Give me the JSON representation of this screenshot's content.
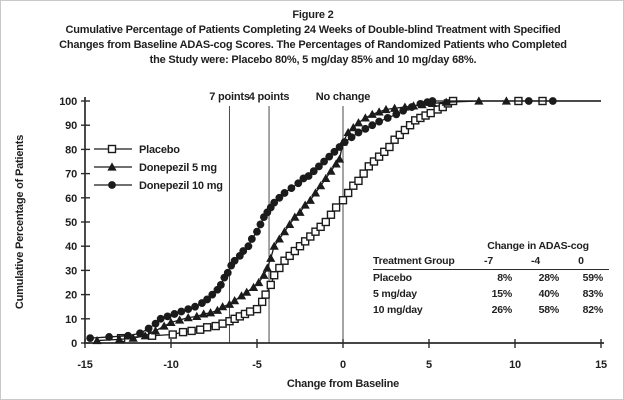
{
  "figure": {
    "heading": "Figure 2",
    "caption_lines": [
      "Cumulative Percentage of Patients Completing 24 Weeks of Double-blind Treatment with Specified",
      "Changes from Baseline ADAS-cog Scores. The Percentages of Randomized Patients who Completed",
      "the Study were: Placebo 80%, 5 mg/day 85% and 10 mg/day 68%."
    ]
  },
  "chart_data": {
    "type": "line",
    "title": "",
    "xlabel": "Change from Baseline",
    "ylabel": "Cumulative Percentage of Patients",
    "xlim": [
      -15,
      15
    ],
    "ylim": [
      0,
      100
    ],
    "xticks": [
      -15,
      -10,
      -5,
      0,
      5,
      10,
      15
    ],
    "yticks": [
      0,
      10,
      20,
      30,
      40,
      50,
      60,
      70,
      80,
      90,
      100
    ],
    "grid": false,
    "legend_position": "upper-left-inside",
    "reference_lines": [
      {
        "label": "7 points",
        "x": -6.6
      },
      {
        "label": "4 points",
        "x": -4.3
      },
      {
        "label": "No change",
        "x": 0
      }
    ],
    "series": [
      {
        "name": "Placebo",
        "marker": "open-square",
        "color": "#1b1b1b",
        "x_end": 15,
        "points": [
          [
            -12.9,
            2
          ],
          [
            -11.1,
            3
          ],
          [
            -9.9,
            3.5
          ],
          [
            -9.3,
            4.5
          ],
          [
            -8.8,
            5
          ],
          [
            -8.3,
            5.5
          ],
          [
            -7.9,
            6.5
          ],
          [
            -7.4,
            7
          ],
          [
            -7,
            8
          ],
          [
            -6.6,
            9
          ],
          [
            -6.3,
            10
          ],
          [
            -6,
            11
          ],
          [
            -5.7,
            12
          ],
          [
            -5.4,
            13
          ],
          [
            -5,
            14
          ],
          [
            -4.7,
            17
          ],
          [
            -4.5,
            20
          ],
          [
            -4.2,
            24
          ],
          [
            -4,
            28
          ],
          [
            -3.7,
            31
          ],
          [
            -3.4,
            34
          ],
          [
            -3.1,
            36
          ],
          [
            -2.8,
            38
          ],
          [
            -2.5,
            40
          ],
          [
            -2.2,
            42
          ],
          [
            -1.9,
            44
          ],
          [
            -1.6,
            46
          ],
          [
            -1.3,
            48
          ],
          [
            -1,
            50
          ],
          [
            -0.7,
            53
          ],
          [
            -0.4,
            56
          ],
          [
            0,
            59
          ],
          [
            0.3,
            62
          ],
          [
            0.6,
            65
          ],
          [
            0.9,
            67
          ],
          [
            1.2,
            70
          ],
          [
            1.5,
            73
          ],
          [
            1.8,
            75
          ],
          [
            2.1,
            77
          ],
          [
            2.4,
            79
          ],
          [
            2.7,
            81
          ],
          [
            3,
            84
          ],
          [
            3.3,
            86
          ],
          [
            3.6,
            88
          ],
          [
            3.9,
            90
          ],
          [
            4.2,
            92
          ],
          [
            4.5,
            93
          ],
          [
            4.8,
            94
          ],
          [
            5.1,
            95
          ],
          [
            5.5,
            96.5
          ],
          [
            5.8,
            97.5
          ],
          [
            6.1,
            99
          ],
          [
            6.4,
            100
          ],
          [
            10.2,
            100
          ],
          [
            11.6,
            100
          ]
        ]
      },
      {
        "name": "Donepezil 5 mg",
        "marker": "filled-triangle",
        "color": "#1b1b1b",
        "x_end": 15,
        "points": [
          [
            -14.3,
            1
          ],
          [
            -13,
            1.5
          ],
          [
            -12.2,
            2
          ],
          [
            -11.5,
            3
          ],
          [
            -10.9,
            5
          ],
          [
            -10.4,
            7
          ],
          [
            -10,
            8.5
          ],
          [
            -9.5,
            9.5
          ],
          [
            -9,
            10.5
          ],
          [
            -8.5,
            11
          ],
          [
            -8.1,
            12
          ],
          [
            -7.7,
            12.5
          ],
          [
            -7.3,
            13.5
          ],
          [
            -7,
            15
          ],
          [
            -6.6,
            16
          ],
          [
            -6.3,
            17.5
          ],
          [
            -5.9,
            19.5
          ],
          [
            -5.6,
            21
          ],
          [
            -5.2,
            23
          ],
          [
            -4.9,
            25
          ],
          [
            -4.6,
            28
          ],
          [
            -4.4,
            31
          ],
          [
            -4.2,
            35
          ],
          [
            -4,
            40
          ],
          [
            -3.7,
            43
          ],
          [
            -3.4,
            46
          ],
          [
            -3.1,
            49
          ],
          [
            -2.8,
            52
          ],
          [
            -2.5,
            54
          ],
          [
            -2.2,
            57
          ],
          [
            -1.9,
            59
          ],
          [
            -1.6,
            62
          ],
          [
            -1.3,
            65
          ],
          [
            -1,
            68
          ],
          [
            -0.7,
            71
          ],
          [
            -0.4,
            74
          ],
          [
            -0.2,
            76
          ],
          [
            0,
            83
          ],
          [
            0.3,
            87
          ],
          [
            0.6,
            89
          ],
          [
            0.9,
            91
          ],
          [
            1.3,
            93
          ],
          [
            1.7,
            94.5
          ],
          [
            2.1,
            95.5
          ],
          [
            2.5,
            96.5
          ],
          [
            3,
            97
          ],
          [
            3.6,
            97.5
          ],
          [
            4.1,
            98
          ],
          [
            4.6,
            98.5
          ],
          [
            5.2,
            99
          ],
          [
            6,
            99.5
          ],
          [
            7.9,
            100
          ],
          [
            9.5,
            100
          ]
        ]
      },
      {
        "name": "Donepezil 10 mg",
        "marker": "filled-circle",
        "color": "#1b1b1b",
        "x_end": 15,
        "points": [
          [
            -14.7,
            2
          ],
          [
            -13.6,
            2.5
          ],
          [
            -12.5,
            3
          ],
          [
            -11.8,
            4
          ],
          [
            -11.3,
            6
          ],
          [
            -10.9,
            8
          ],
          [
            -10.6,
            10
          ],
          [
            -10.2,
            11
          ],
          [
            -9.8,
            12
          ],
          [
            -9.4,
            13
          ],
          [
            -9,
            14
          ],
          [
            -8.6,
            15
          ],
          [
            -8.2,
            16.5
          ],
          [
            -7.9,
            18
          ],
          [
            -7.6,
            20
          ],
          [
            -7.3,
            22
          ],
          [
            -7.1,
            24
          ],
          [
            -6.9,
            27
          ],
          [
            -6.7,
            29
          ],
          [
            -6.5,
            32
          ],
          [
            -6.3,
            34
          ],
          [
            -6,
            36
          ],
          [
            -5.8,
            38
          ],
          [
            -5.5,
            40
          ],
          [
            -5.3,
            43
          ],
          [
            -5,
            46
          ],
          [
            -4.8,
            49
          ],
          [
            -4.6,
            52
          ],
          [
            -4.4,
            54
          ],
          [
            -4.2,
            56
          ],
          [
            -4,
            58
          ],
          [
            -3.7,
            60
          ],
          [
            -3.4,
            62
          ],
          [
            -3,
            64
          ],
          [
            -2.6,
            66
          ],
          [
            -2.3,
            68
          ],
          [
            -2,
            69
          ],
          [
            -1.7,
            71
          ],
          [
            -1.4,
            73
          ],
          [
            -1.1,
            75
          ],
          [
            -0.8,
            77
          ],
          [
            -0.5,
            79
          ],
          [
            -0.2,
            81
          ],
          [
            0.1,
            83
          ],
          [
            0.5,
            85
          ],
          [
            0.9,
            87
          ],
          [
            1.3,
            88.5
          ],
          [
            1.7,
            90
          ],
          [
            2.1,
            91.5
          ],
          [
            2.6,
            93
          ],
          [
            3.1,
            94.5
          ],
          [
            3.5,
            96
          ],
          [
            4,
            97.5
          ],
          [
            4.5,
            98.8
          ],
          [
            4.9,
            99.5
          ],
          [
            5.2,
            100
          ],
          [
            10.8,
            100
          ],
          [
            12.2,
            100
          ]
        ]
      }
    ]
  },
  "legend": [
    {
      "label": "Placebo",
      "marker": "open-square"
    },
    {
      "label": "Donepezil 5 mg",
      "marker": "filled-triangle"
    },
    {
      "label": "Donepezil 10 mg",
      "marker": "filled-circle"
    }
  ],
  "inset_table": {
    "title": "Change in ADAS-cog",
    "col_headers": [
      "Treatment Group",
      "-7",
      "-4",
      "0"
    ],
    "rows": [
      [
        "Placebo",
        "8%",
        "28%",
        "59%"
      ],
      [
        "5 mg/day",
        "15%",
        "40%",
        "83%"
      ],
      [
        "10 mg/day",
        "26%",
        "58%",
        "82%"
      ]
    ]
  }
}
